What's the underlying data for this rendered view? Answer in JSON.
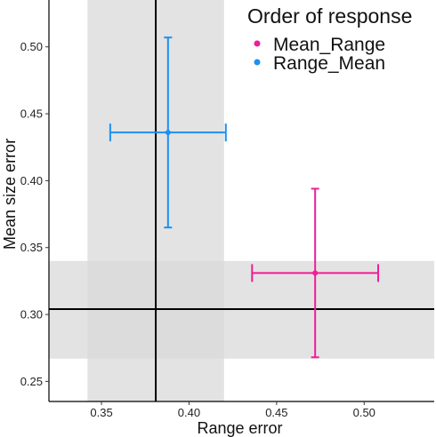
{
  "chart_data": {
    "type": "scatter",
    "xlabel": "Range error",
    "ylabel": "Mean size error",
    "xlim": [
      0.32,
      0.54
    ],
    "ylim": [
      0.235,
      0.535
    ],
    "x_ticks": [
      0.35,
      0.4,
      0.45,
      0.5
    ],
    "x_tick_labels": [
      "0.35",
      "0.40",
      "0.45",
      "0.50"
    ],
    "y_ticks": [
      0.25,
      0.3,
      0.35,
      0.4,
      0.45,
      0.5
    ],
    "y_tick_labels": [
      "0.25",
      "0.30",
      "0.35",
      "0.40",
      "0.45",
      "0.50"
    ],
    "grid": false,
    "legend": {
      "title": "Order of response",
      "placement": "top-right"
    },
    "reference": {
      "x": 0.381,
      "y": 0.304,
      "x_band": [
        0.342,
        0.42
      ],
      "y_band": [
        0.267,
        0.34
      ],
      "line_color": "#000000",
      "band_color": "#d9d9d9"
    },
    "series": [
      {
        "name": "Mean_Range",
        "color": "#f01e96",
        "x": 0.472,
        "y": 0.331,
        "x_err": [
          0.436,
          0.508
        ],
        "y_err": [
          0.268,
          0.394
        ]
      },
      {
        "name": "Range_Mean",
        "color": "#1e90f0",
        "x": 0.388,
        "y": 0.436,
        "x_err": [
          0.355,
          0.421
        ],
        "y_err": [
          0.365,
          0.507
        ]
      }
    ]
  }
}
